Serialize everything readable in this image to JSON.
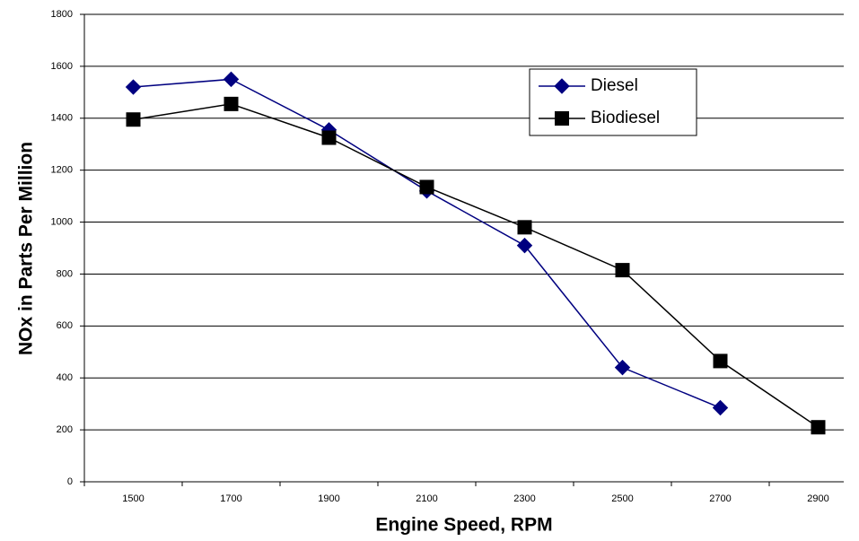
{
  "chart_data": {
    "type": "line",
    "x_label": "Engine Speed, RPM",
    "y_label": "NOx in Parts Per Million",
    "categories": [
      "1500",
      "1700",
      "1900",
      "2100",
      "2300",
      "2500",
      "2700",
      "2900"
    ],
    "series": [
      {
        "name": "Diesel",
        "color": "#000080",
        "marker": "diamond",
        "values": [
          1520,
          1550,
          1355,
          1120,
          910,
          440,
          285,
          null
        ]
      },
      {
        "name": "Biodiesel",
        "color": "#000000",
        "marker": "square",
        "values": [
          1395,
          1455,
          1325,
          1135,
          980,
          815,
          465,
          210
        ]
      }
    ],
    "ylim": [
      0,
      1800
    ],
    "yticks": [
      0,
      200,
      400,
      600,
      800,
      1000,
      1200,
      1400,
      1600,
      1800
    ],
    "grid": true,
    "legend": "upper right"
  }
}
